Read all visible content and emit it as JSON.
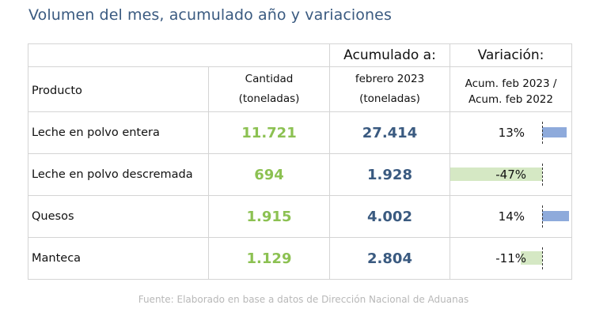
{
  "title": "Volumen del mes, acumulado año y variaciones",
  "header": {
    "product": "Producto",
    "quantity_line1": "Cantidad",
    "quantity_line2": "(toneladas)",
    "accum_title": "Acumulado a:",
    "accum_line1": "febrero 2023",
    "accum_line2": "(toneladas)",
    "variation_title": "Variación:",
    "variation_line1": "Acum. feb 2023 /",
    "variation_line2": "Acum. feb 2022"
  },
  "rows": [
    {
      "product": "Leche en polvo entera",
      "quantity": "11.721",
      "accumulated": "27.414",
      "variation": "13%",
      "variation_value": 13
    },
    {
      "product": "Leche en polvo descremada",
      "quantity": "694",
      "accumulated": "1.928",
      "variation": "-47%",
      "variation_value": -47
    },
    {
      "product": "Quesos",
      "quantity": "1.915",
      "accumulated": "4.002",
      "variation": "14%",
      "variation_value": 14
    },
    {
      "product": "Manteca",
      "quantity": "1.129",
      "accumulated": "2.804",
      "variation": "-11%",
      "variation_value": -11
    }
  ],
  "colors": {
    "title": "#3a5a80",
    "quantity": "#8cc152",
    "accumulated": "#3a5a80",
    "positive_bar": "#8eaadb",
    "negative_bar": "#d5e8c4"
  },
  "source": "Fuente: Elaborado en base a datos de Dirección Nacional de Aduanas"
}
